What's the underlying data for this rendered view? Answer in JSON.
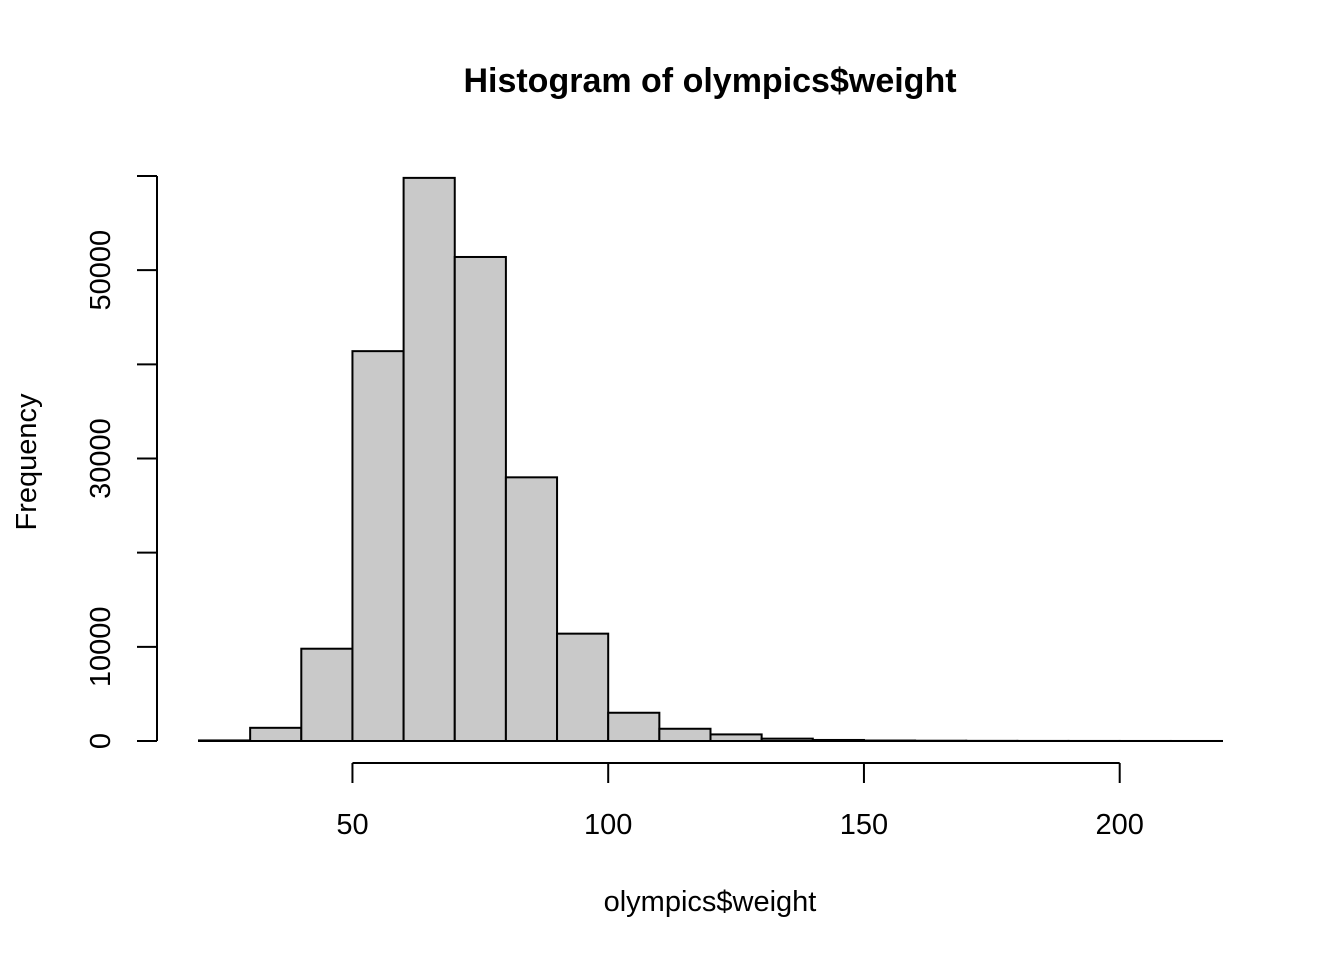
{
  "chart_data": {
    "type": "bar",
    "title": "Histogram of olympics$weight",
    "xlabel": "olympics$weight",
    "ylabel": "Frequency",
    "bin_edges": [
      20,
      30,
      40,
      50,
      60,
      70,
      80,
      90,
      100,
      110,
      120,
      130,
      140,
      150,
      160,
      170,
      180,
      190,
      200,
      210,
      220
    ],
    "values": [
      60,
      1400,
      9800,
      41400,
      59800,
      51400,
      28000,
      11400,
      3000,
      1300,
      700,
      250,
      110,
      50,
      30,
      15,
      8,
      5,
      3,
      2
    ],
    "xlim": [
      20,
      220
    ],
    "ylim": [
      0,
      60000
    ],
    "x_ticks": [
      50,
      100,
      150,
      200
    ],
    "y_ticks": [
      0,
      10000,
      20000,
      30000,
      40000,
      50000,
      60000
    ],
    "y_tick_labels": [
      "0",
      "",
      "",
      "30000",
      "",
      "50000",
      ""
    ],
    "y_tick_labels_full": [
      "0",
      "10000",
      "",
      "30000",
      "",
      "50000",
      ""
    ],
    "colors": {
      "bar_fill": "#c9c9c9",
      "bar_stroke": "#000000"
    }
  }
}
